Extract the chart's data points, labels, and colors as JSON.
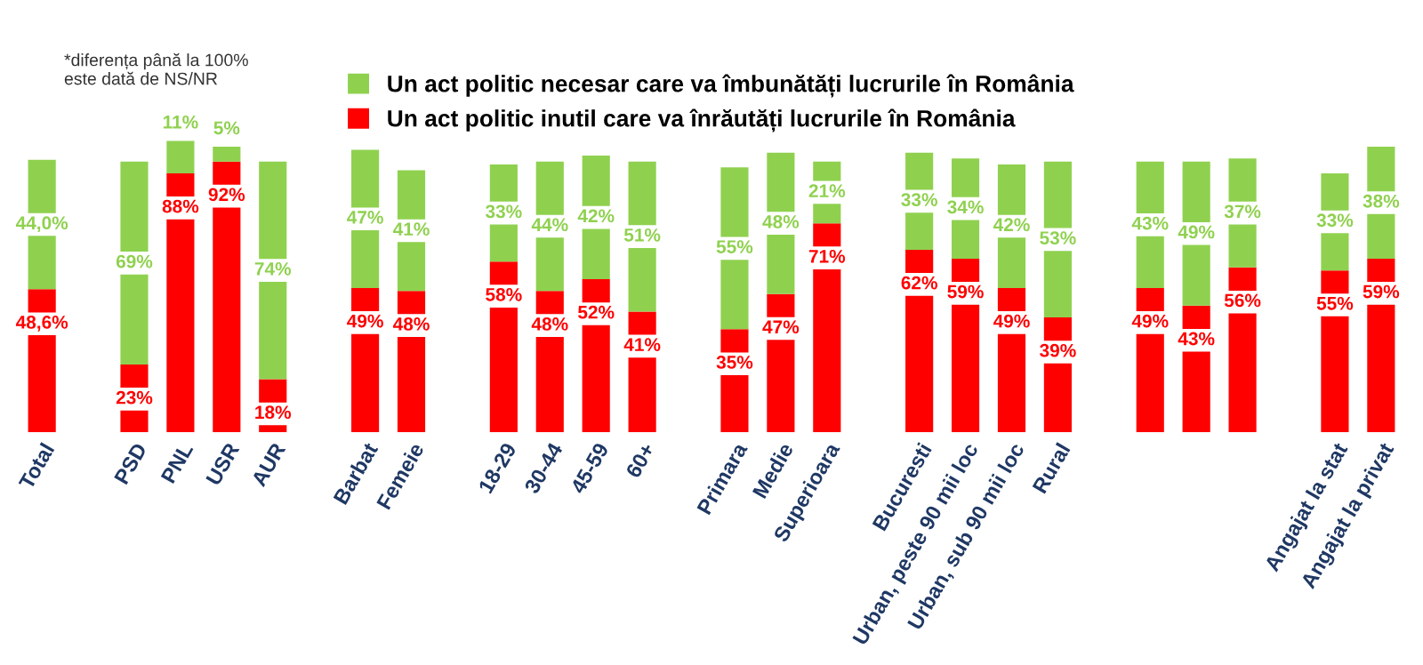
{
  "chart_data": {
    "type": "bar",
    "stacked": true,
    "tick_labels": "x",
    "grid": false,
    "legend": "top",
    "categories": [
      "Total",
      null,
      "PSD",
      "PNL",
      "USR",
      "AUR",
      null,
      "Barbat",
      "Femeie",
      null,
      "18-29",
      "30-44",
      "45-59",
      "60+",
      null,
      "Primara",
      "Medie",
      "Superioara",
      null,
      "Bucuresti",
      "Urban, peste 90 mii loc",
      "Urban, sub 90 mii loc",
      "Rural",
      null,
      null,
      null,
      null,
      null,
      "Angajat la stat",
      "Angajat la privat"
    ],
    "series": [
      {
        "name": "Un act politic inutil care va înrăutăți lucrurile în România",
        "color": "#ff0000",
        "values": [
          48.6,
          null,
          23,
          88,
          92,
          18,
          null,
          49,
          48,
          null,
          58,
          48,
          52,
          41,
          null,
          35,
          47,
          71,
          null,
          62,
          59,
          49,
          39,
          null,
          49,
          43,
          56,
          null,
          55,
          59
        ],
        "value_labels": [
          "48,6%",
          null,
          "23%",
          "88%",
          "92%",
          "18%",
          null,
          "49%",
          "48%",
          null,
          "58%",
          "48%",
          "52%",
          "41%",
          null,
          "35%",
          "47%",
          "71%",
          null,
          "62%",
          "59%",
          "49%",
          "39%",
          null,
          "49%",
          "43%",
          "56%",
          null,
          "55%",
          "59%"
        ]
      },
      {
        "name": "Un act politic necesar care va îmbunătăți lucrurile în România",
        "color": "#8fd14f",
        "values": [
          44.0,
          null,
          69,
          11,
          5,
          74,
          null,
          47,
          41,
          null,
          33,
          44,
          42,
          51,
          null,
          55,
          48,
          21,
          null,
          33,
          34,
          42,
          53,
          null,
          43,
          49,
          37,
          null,
          33,
          38
        ],
        "value_labels": [
          "44,0%",
          null,
          "69%",
          "11%",
          "5%",
          "74%",
          null,
          "47%",
          "41%",
          null,
          "33%",
          "44%",
          "42%",
          "51%",
          null,
          "55%",
          "48%",
          "21%",
          null,
          "33%",
          "34%",
          "42%",
          "53%",
          null,
          "43%",
          "49%",
          "37%",
          null,
          "33%",
          "38%"
        ]
      }
    ],
    "annotations": [
      "*diferența până la 100%\neste dată de NS/NR"
    ]
  }
}
